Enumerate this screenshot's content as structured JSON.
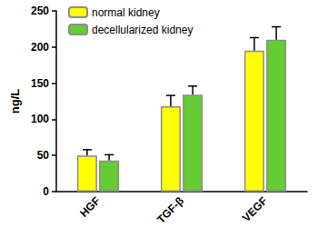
{
  "chart_data": {
    "type": "bar",
    "categories": [
      "HGF",
      "TGF-β",
      "VEGF"
    ],
    "series": [
      {
        "name": "normal kidney",
        "color": "#ffff00",
        "values": [
          50,
          118,
          195
        ],
        "errors": [
          8,
          15,
          18
        ]
      },
      {
        "name": "decellularized kidney",
        "color": "#66cc33",
        "values": [
          43,
          134,
          210
        ],
        "errors": [
          8,
          12,
          18
        ]
      }
    ],
    "y_label": "ng/L",
    "ylim": [
      0,
      250
    ],
    "yticks": [
      0,
      50,
      100,
      150,
      200,
      250
    ],
    "grid": false,
    "legend": "upper left"
  }
}
